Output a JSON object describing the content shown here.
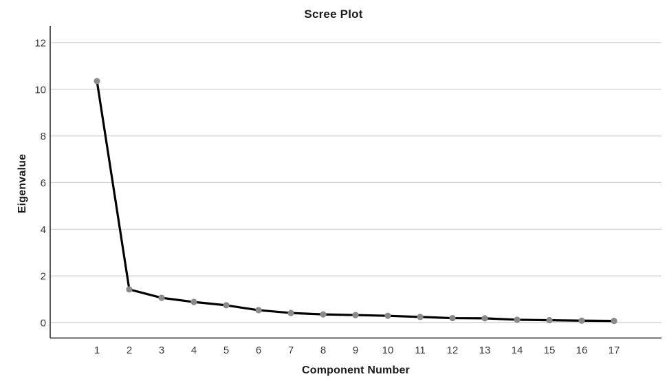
{
  "chart_data": {
    "type": "line",
    "title": "Scree Plot",
    "xlabel": "Component Number",
    "ylabel": "Eigenvalue",
    "categories": [
      "1",
      "2",
      "3",
      "4",
      "5",
      "6",
      "7",
      "8",
      "9",
      "10",
      "11",
      "12",
      "13",
      "14",
      "15",
      "16",
      "17"
    ],
    "series": [
      {
        "name": "Eigenvalue",
        "values": [
          10.35,
          1.42,
          1.06,
          0.88,
          0.74,
          0.53,
          0.41,
          0.35,
          0.32,
          0.29,
          0.24,
          0.19,
          0.18,
          0.12,
          0.1,
          0.08,
          0.07
        ]
      }
    ],
    "y_ticks": [
      0,
      2,
      4,
      6,
      8,
      10,
      12
    ],
    "ylim": [
      -0.68,
      12.72
    ],
    "grid": "horizontal-only",
    "legend": "none",
    "marker": "circle",
    "colors": {
      "line": "#000000",
      "marker": "#8a8a8a",
      "gridline": "#d4d4d4",
      "axis": "#434343",
      "tick_text": "#3a3a3a",
      "title_text": "#1a1a1a",
      "background": "#ffffff"
    }
  }
}
